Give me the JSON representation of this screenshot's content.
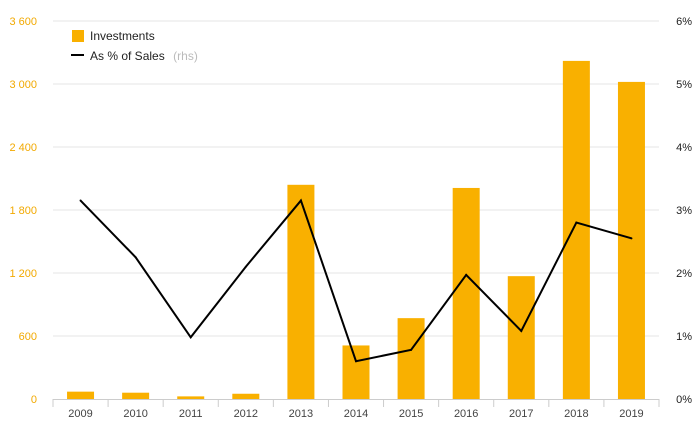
{
  "chart_data": {
    "type": "bar",
    "categories": [
      "2009",
      "2010",
      "2011",
      "2012",
      "2013",
      "2014",
      "2015",
      "2016",
      "2017",
      "2018",
      "2019"
    ],
    "series": [
      {
        "name": "Investments",
        "type": "bar",
        "axis": "left",
        "color": "#f9b000",
        "values": [
          70,
          60,
          25,
          50,
          2040,
          510,
          770,
          2010,
          1170,
          3220,
          3020
        ]
      },
      {
        "name": "As % of Sales",
        "name_suffix": "(rhs)",
        "type": "line",
        "axis": "right",
        "color": "#000000",
        "values": [
          3.15,
          2.25,
          0.98,
          2.1,
          3.15,
          0.6,
          0.78,
          1.97,
          1.08,
          2.8,
          2.55
        ]
      }
    ],
    "y_left": {
      "ylim": [
        0,
        3600
      ],
      "ticks": [
        0,
        600,
        1200,
        1800,
        2400,
        3000,
        3600
      ],
      "tick_labels": [
        "0",
        "600",
        "1 200",
        "1 800",
        "2 400",
        "3 000",
        "3 600"
      ]
    },
    "y_right": {
      "ylim": [
        0,
        6
      ],
      "ticks": [
        0,
        1,
        2,
        3,
        4,
        5,
        6
      ],
      "tick_labels": [
        "0%",
        "1%",
        "2%",
        "3%",
        "4%",
        "5%",
        "6%"
      ]
    },
    "grid": true,
    "legend_position": "top-left",
    "title": "",
    "xlabel": "",
    "ylabel": ""
  }
}
